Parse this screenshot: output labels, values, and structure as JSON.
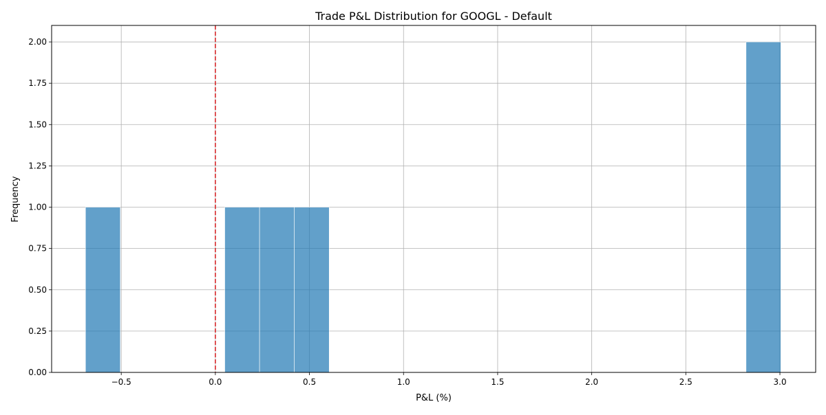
{
  "chart_data": {
    "type": "bar",
    "title": "Trade P&L Distribution for GOOGL - Default",
    "xlabel": "P&L (%)",
    "ylabel": "Frequency",
    "xlim": [
      -0.87,
      3.19
    ],
    "ylim": [
      0,
      2.1
    ],
    "xticks": [
      -0.5,
      0.0,
      0.5,
      1.0,
      1.5,
      2.0,
      2.5,
      3.0
    ],
    "xtick_labels": [
      "−0.5",
      "0.0",
      "0.5",
      "1.0",
      "1.5",
      "2.0",
      "2.5",
      "3.0"
    ],
    "yticks": [
      0,
      0.25,
      0.5,
      0.75,
      1.0,
      1.25,
      1.5,
      1.75,
      2.0
    ],
    "ytick_labels": [
      "0.00",
      "0.25",
      "0.50",
      "0.75",
      "1.00",
      "1.25",
      "1.50",
      "1.75",
      "2.00"
    ],
    "bins": [
      {
        "x0": -0.69,
        "x1": -0.505,
        "count": 1
      },
      {
        "x0": 0.05,
        "x1": 0.235,
        "count": 1
      },
      {
        "x0": 0.235,
        "x1": 0.42,
        "count": 1
      },
      {
        "x0": 0.42,
        "x1": 0.605,
        "count": 1
      },
      {
        "x0": 2.82,
        "x1": 3.005,
        "count": 2
      }
    ],
    "reference_line": {
      "x": 0,
      "color": "#d62728",
      "style": "dashed"
    },
    "bar_color": "#1f77b4",
    "bar_alpha": 0.7,
    "grid": true
  }
}
